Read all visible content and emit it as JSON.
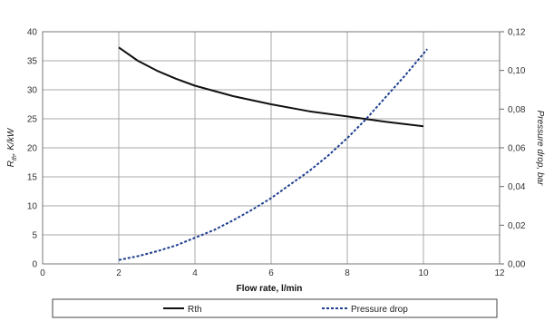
{
  "chart_data": {
    "type": "line",
    "title": "",
    "xlabel": "Flow rate, l/min",
    "ylabel_left": "R_th, K/kW",
    "ylabel_left_main": "R",
    "ylabel_left_sub": "th",
    "ylabel_left_rest": ", K/kW",
    "ylabel_right": "Pressure drop, bar",
    "xlim": [
      0,
      12
    ],
    "ylim_left": [
      0,
      40
    ],
    "ylim_right": [
      0,
      0.12
    ],
    "x_ticks": [
      "0",
      "2",
      "4",
      "6",
      "8",
      "10",
      "12"
    ],
    "y_left_ticks": [
      "0",
      "5",
      "10",
      "15",
      "20",
      "25",
      "30",
      "35",
      "40"
    ],
    "y_right_ticks": [
      "0,00",
      "0,02",
      "0,04",
      "0,06",
      "0,08",
      "0,10",
      "0,12"
    ],
    "grid": true,
    "legend_position": "bottom",
    "series": [
      {
        "name": "Rth",
        "axis": "left",
        "style": "solid",
        "color": "#111111",
        "x": [
          2.0,
          2.5,
          3.0,
          3.5,
          4.0,
          5.0,
          6.0,
          7.0,
          8.0,
          9.0,
          10.0
        ],
        "y": [
          37.3,
          35.0,
          33.3,
          31.9,
          30.7,
          28.9,
          27.5,
          26.3,
          25.4,
          24.5,
          23.7
        ]
      },
      {
        "name": "Pressure drop",
        "axis": "right",
        "style": "dashed",
        "color": "#1f3f8f",
        "x": [
          2.0,
          2.5,
          3.0,
          3.5,
          4.0,
          4.5,
          5.0,
          5.5,
          6.0,
          6.5,
          7.0,
          7.5,
          8.0,
          8.5,
          9.0,
          9.5,
          10.1
        ],
        "y": [
          0.002,
          0.004,
          0.0065,
          0.0095,
          0.0135,
          0.0175,
          0.0225,
          0.028,
          0.034,
          0.041,
          0.048,
          0.056,
          0.065,
          0.075,
          0.086,
          0.097,
          0.111
        ]
      }
    ]
  }
}
